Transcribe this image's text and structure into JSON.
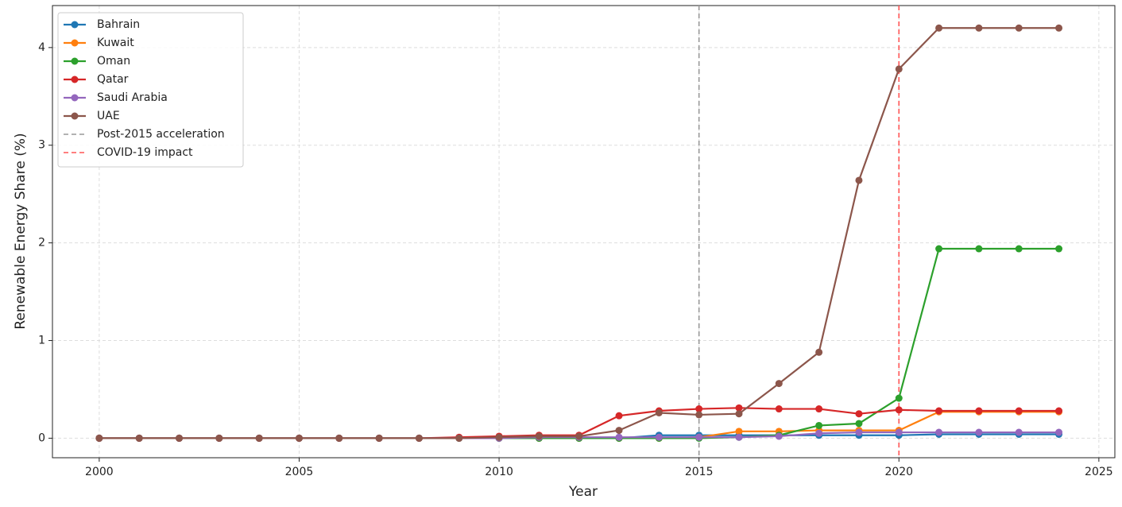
{
  "chart_data": {
    "type": "line",
    "x_label": "Year",
    "y_label": "Renewable Energy Share (%)",
    "x": [
      2000,
      2001,
      2002,
      2003,
      2004,
      2005,
      2006,
      2007,
      2008,
      2009,
      2010,
      2011,
      2012,
      2013,
      2014,
      2015,
      2016,
      2017,
      2018,
      2019,
      2020,
      2021,
      2022,
      2023,
      2024
    ],
    "series": [
      {
        "name": "Bahrain",
        "color": "#1f77b4",
        "values": [
          0,
          0,
          0,
          0,
          0,
          0,
          0,
          0,
          0,
          0,
          0,
          0,
          0,
          0,
          0.03,
          0.03,
          0.03,
          0.03,
          0.03,
          0.03,
          0.03,
          0.04,
          0.04,
          0.04,
          0.04
        ]
      },
      {
        "name": "Kuwait",
        "color": "#ff7f0e",
        "values": [
          0,
          0,
          0,
          0,
          0,
          0,
          0,
          0,
          0,
          0,
          0,
          0,
          0,
          0,
          0,
          0.01,
          0.07,
          0.07,
          0.08,
          0.08,
          0.08,
          0.27,
          0.27,
          0.27,
          0.27
        ]
      },
      {
        "name": "Oman",
        "color": "#2ca02c",
        "values": [
          0,
          0,
          0,
          0,
          0,
          0,
          0,
          0,
          0,
          0,
          0,
          0,
          0,
          0,
          0,
          0,
          0.01,
          0.03,
          0.13,
          0.15,
          0.41,
          1.94,
          1.94,
          1.94,
          1.94
        ]
      },
      {
        "name": "Qatar",
        "color": "#d62728",
        "values": [
          0,
          0,
          0,
          0,
          0,
          0,
          0,
          0,
          0,
          0.01,
          0.02,
          0.03,
          0.03,
          0.23,
          0.28,
          0.3,
          0.31,
          0.3,
          0.3,
          0.25,
          0.29,
          0.28,
          0.28,
          0.28,
          0.28
        ]
      },
      {
        "name": "Saudi Arabia",
        "color": "#9467bd",
        "values": [
          0,
          0,
          0,
          0,
          0,
          0,
          0,
          0,
          0,
          0,
          0,
          0.01,
          0.01,
          0.01,
          0.01,
          0.01,
          0.01,
          0.02,
          0.05,
          0.06,
          0.06,
          0.06,
          0.06,
          0.06,
          0.06
        ]
      },
      {
        "name": "UAE",
        "color": "#8c564b",
        "values": [
          0,
          0,
          0,
          0,
          0,
          0,
          0,
          0,
          0,
          0,
          0.01,
          0.02,
          0.02,
          0.08,
          0.26,
          0.24,
          0.25,
          0.56,
          0.88,
          2.64,
          3.78,
          4.2,
          4.2,
          4.2,
          4.2
        ]
      }
    ],
    "reference_lines": [
      {
        "label": "Post-2015 acceleration",
        "x": 2015,
        "color": "#999999"
      },
      {
        "label": "COVID-19 impact",
        "x": 2020,
        "color": "#ff5555"
      }
    ],
    "xlim": [
      1998.83,
      2025.4
    ],
    "ylim": [
      -0.2,
      4.43
    ],
    "xticks": [
      2000,
      2005,
      2010,
      2015,
      2020,
      2025
    ],
    "yticks": [
      0,
      1,
      2,
      3,
      4
    ],
    "grid": true,
    "legend": "upper-left"
  }
}
